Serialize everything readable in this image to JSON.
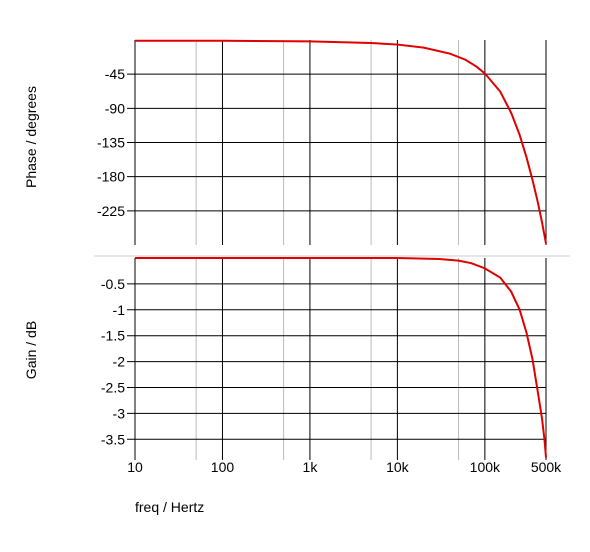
{
  "chart_data": [
    {
      "type": "line",
      "panel": "phase",
      "xlabel": "",
      "ylabel": "Phase / degrees",
      "x_scale": "log",
      "xlim": [
        10,
        500000
      ],
      "ylim": [
        -270,
        0
      ],
      "y_ticks": [
        -45,
        -90,
        -135,
        -180,
        -225
      ],
      "y_tick_labels": [
        "-45",
        "-90",
        "-135",
        "-180",
        "-225"
      ],
      "grid": true,
      "line_color": "#e00000",
      "series": [
        {
          "x": [
            10,
            100,
            1000,
            5000,
            10000,
            20000,
            40000,
            60000,
            80000,
            100000,
            150000,
            200000,
            250000,
            300000,
            350000,
            400000,
            450000,
            500000
          ],
          "values": [
            -1,
            -1,
            -1.8,
            -4,
            -6,
            -10,
            -18,
            -26,
            -35,
            -44,
            -68,
            -96,
            -125,
            -155,
            -184,
            -212,
            -240,
            -268
          ]
        }
      ]
    },
    {
      "type": "line",
      "panel": "gain",
      "xlabel": "freq / Hertz",
      "ylabel": "Gain / dB",
      "x_scale": "log",
      "xlim": [
        10,
        500000
      ],
      "ylim": [
        -3.9,
        0
      ],
      "x_ticks": [
        10,
        100,
        1000,
        10000,
        100000,
        500000
      ],
      "x_tick_labels": [
        "10",
        "100",
        "1k",
        "10k",
        "100k",
        "500k"
      ],
      "y_ticks": [
        -0.5,
        -1,
        -1.5,
        -2,
        -2.5,
        -3,
        -3.5
      ],
      "y_tick_labels": [
        "-0.5",
        "-1",
        "-1.5",
        "-2",
        "-2.5",
        "-3",
        "-3.5"
      ],
      "grid": true,
      "line_color": "#e00000",
      "series": [
        {
          "x": [
            10,
            1000,
            10000,
            30000,
            50000,
            70000,
            100000,
            150000,
            200000,
            250000,
            300000,
            350000,
            400000,
            450000,
            480000,
            500000
          ],
          "values": [
            0,
            0,
            0,
            -0.02,
            -0.05,
            -0.1,
            -0.2,
            -0.38,
            -0.65,
            -1.0,
            -1.45,
            -1.95,
            -2.55,
            -3.1,
            -3.5,
            -3.85
          ]
        }
      ]
    }
  ]
}
